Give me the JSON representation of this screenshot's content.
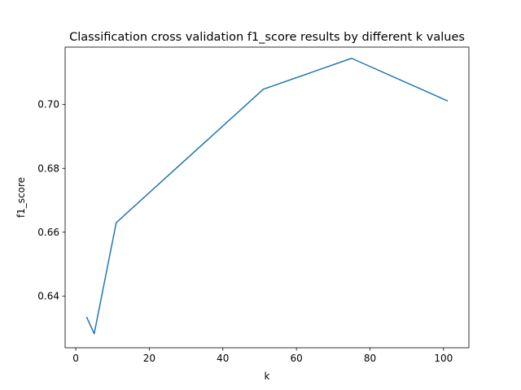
{
  "chart_data": {
    "type": "line",
    "title": "Classification cross validation f1_score results by different k values",
    "xlabel": "k",
    "ylabel": "f1_score",
    "x": [
      3,
      5,
      11,
      51,
      75,
      101
    ],
    "series": [
      {
        "values": [
          0.6333,
          0.6282,
          0.663,
          0.7048,
          0.7145,
          0.7012
        ],
        "color": "#1f77b4"
      }
    ],
    "xlim": [
      -2.9,
      106.9
    ],
    "ylim": [
      0.6238,
      0.718
    ],
    "xticks": [
      0,
      20,
      40,
      60,
      80,
      100
    ],
    "xtick_labels": [
      "0",
      "20",
      "40",
      "60",
      "80",
      "100"
    ],
    "yticks": [
      0.64,
      0.66,
      0.68,
      0.7
    ],
    "ytick_labels": [
      "0.64",
      "0.66",
      "0.68",
      "0.70"
    ],
    "grid": false,
    "legend": "none"
  }
}
